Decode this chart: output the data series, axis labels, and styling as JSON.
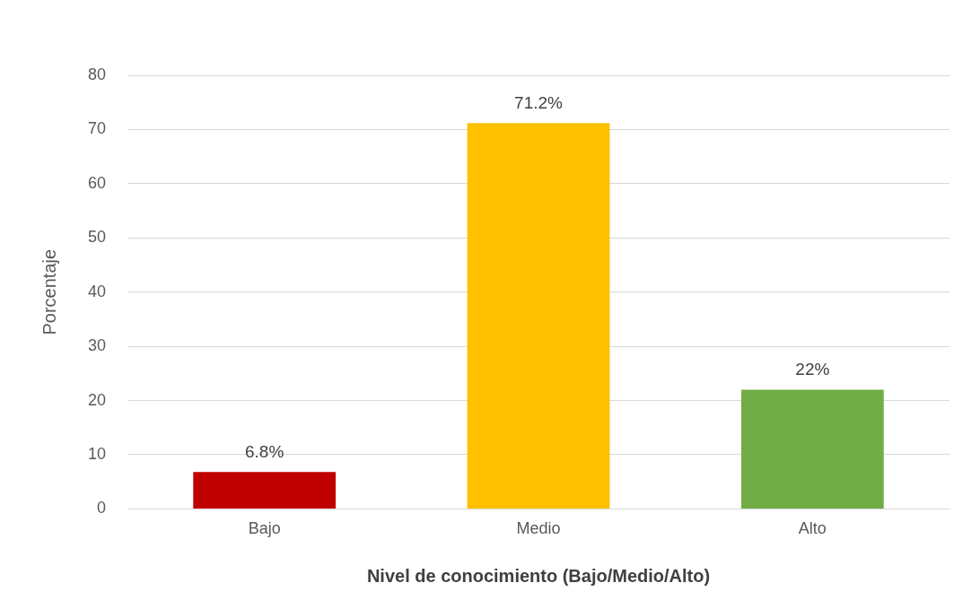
{
  "chart_data": {
    "type": "bar",
    "categories": [
      "Bajo",
      "Medio",
      "Alto"
    ],
    "values": [
      6.8,
      71.2,
      22
    ],
    "colors": [
      "#c00000",
      "#ffc000",
      "#70ad47"
    ],
    "value_labels": [
      "6.8%",
      "71.2%",
      "22%"
    ],
    "xlabel": "Nivel de conocimiento (Bajo/Medio/Alto)",
    "ylabel": "Porcentaje",
    "ylim": [
      0,
      80
    ],
    "yticks": [
      0,
      10,
      20,
      30,
      40,
      50,
      60,
      70,
      80
    ],
    "grid": "y",
    "legend": false
  }
}
